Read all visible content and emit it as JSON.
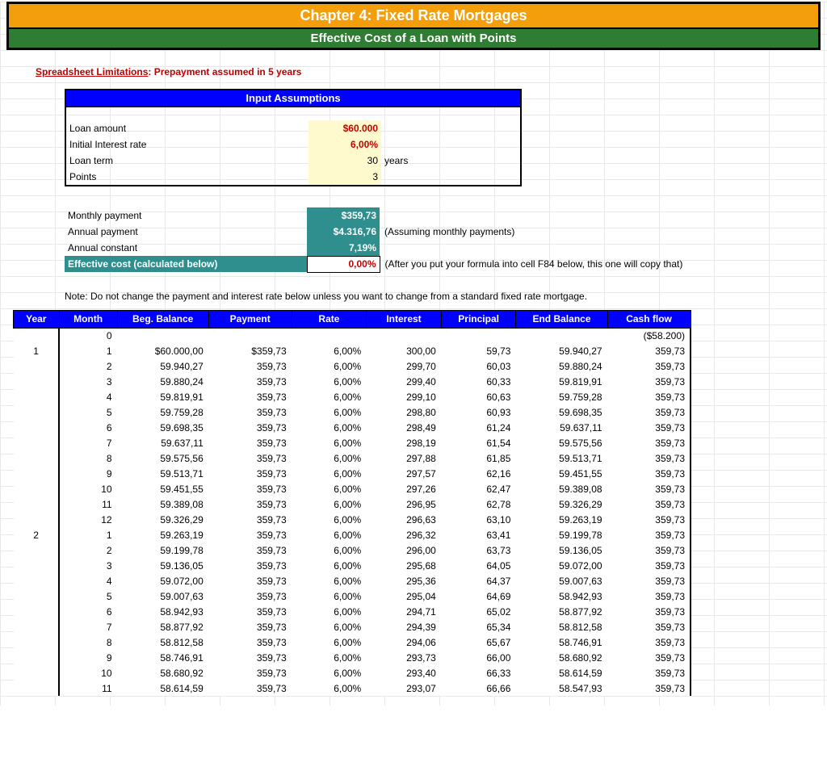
{
  "header": {
    "title": "Chapter 4:  Fixed Rate Mortgages",
    "subtitle": "Effective Cost of a Loan with Points"
  },
  "warning": {
    "label": "Spreadsheet Limitations",
    "text": ": Prepayment assumed in 5 years"
  },
  "assumptions": {
    "header": "Input Assumptions",
    "rows": {
      "loan_amount_l": "Loan amount",
      "loan_amount_v": "$60.000",
      "rate_l": "Initial Interest rate",
      "rate_v": "6,00%",
      "term_l": "Loan term",
      "term_v": "30",
      "term_unit": "years",
      "points_l": "Points",
      "points_v": "3"
    }
  },
  "calc": {
    "mp_l": "Monthly payment",
    "mp_v": "$359,73",
    "ap_l": "Annual payment",
    "ap_v": "$4.316,76",
    "ap_note": "(Assuming monthly payments)",
    "ac_l": "Annual constant",
    "ac_v": "7,19%",
    "ec_l": "Effective cost (calculated below)",
    "ec_v": "0,00%",
    "ec_note": "(After you put your formula into cell F84 below, this one will copy that)"
  },
  "note": "Note: Do not change the payment and interest rate below unless you want to change from a standard fixed rate mortgage.",
  "amort": {
    "headers": [
      "Year",
      "Month",
      "Beg. Balance",
      "Payment",
      "Rate",
      "Interest",
      "Principal",
      "End Balance",
      "Cash flow"
    ],
    "row0": {
      "year": "",
      "month": "0",
      "bb": "",
      "pmt": "",
      "rate": "",
      "int": "",
      "prin": "",
      "eb": "",
      "cf": "($58.200)"
    },
    "rows": [
      {
        "year": "1",
        "month": "1",
        "bb": "$60.000,00",
        "pmt": "$359,73",
        "rate": "6,00%",
        "int": "300,00",
        "prin": "59,73",
        "eb": "59.940,27",
        "cf": "359,73"
      },
      {
        "year": "",
        "month": "2",
        "bb": "59.940,27",
        "pmt": "359,73",
        "rate": "6,00%",
        "int": "299,70",
        "prin": "60,03",
        "eb": "59.880,24",
        "cf": "359,73"
      },
      {
        "year": "",
        "month": "3",
        "bb": "59.880,24",
        "pmt": "359,73",
        "rate": "6,00%",
        "int": "299,40",
        "prin": "60,33",
        "eb": "59.819,91",
        "cf": "359,73"
      },
      {
        "year": "",
        "month": "4",
        "bb": "59.819,91",
        "pmt": "359,73",
        "rate": "6,00%",
        "int": "299,10",
        "prin": "60,63",
        "eb": "59.759,28",
        "cf": "359,73"
      },
      {
        "year": "",
        "month": "5",
        "bb": "59.759,28",
        "pmt": "359,73",
        "rate": "6,00%",
        "int": "298,80",
        "prin": "60,93",
        "eb": "59.698,35",
        "cf": "359,73"
      },
      {
        "year": "",
        "month": "6",
        "bb": "59.698,35",
        "pmt": "359,73",
        "rate": "6,00%",
        "int": "298,49",
        "prin": "61,24",
        "eb": "59.637,11",
        "cf": "359,73"
      },
      {
        "year": "",
        "month": "7",
        "bb": "59.637,11",
        "pmt": "359,73",
        "rate": "6,00%",
        "int": "298,19",
        "prin": "61,54",
        "eb": "59.575,56",
        "cf": "359,73"
      },
      {
        "year": "",
        "month": "8",
        "bb": "59.575,56",
        "pmt": "359,73",
        "rate": "6,00%",
        "int": "297,88",
        "prin": "61,85",
        "eb": "59.513,71",
        "cf": "359,73"
      },
      {
        "year": "",
        "month": "9",
        "bb": "59.513,71",
        "pmt": "359,73",
        "rate": "6,00%",
        "int": "297,57",
        "prin": "62,16",
        "eb": "59.451,55",
        "cf": "359,73"
      },
      {
        "year": "",
        "month": "10",
        "bb": "59.451,55",
        "pmt": "359,73",
        "rate": "6,00%",
        "int": "297,26",
        "prin": "62,47",
        "eb": "59.389,08",
        "cf": "359,73"
      },
      {
        "year": "",
        "month": "11",
        "bb": "59.389,08",
        "pmt": "359,73",
        "rate": "6,00%",
        "int": "296,95",
        "prin": "62,78",
        "eb": "59.326,29",
        "cf": "359,73"
      },
      {
        "year": "",
        "month": "12",
        "bb": "59.326,29",
        "pmt": "359,73",
        "rate": "6,00%",
        "int": "296,63",
        "prin": "63,10",
        "eb": "59.263,19",
        "cf": "359,73"
      },
      {
        "year": "2",
        "month": "1",
        "bb": "59.263,19",
        "pmt": "359,73",
        "rate": "6,00%",
        "int": "296,32",
        "prin": "63,41",
        "eb": "59.199,78",
        "cf": "359,73"
      },
      {
        "year": "",
        "month": "2",
        "bb": "59.199,78",
        "pmt": "359,73",
        "rate": "6,00%",
        "int": "296,00",
        "prin": "63,73",
        "eb": "59.136,05",
        "cf": "359,73"
      },
      {
        "year": "",
        "month": "3",
        "bb": "59.136,05",
        "pmt": "359,73",
        "rate": "6,00%",
        "int": "295,68",
        "prin": "64,05",
        "eb": "59.072,00",
        "cf": "359,73"
      },
      {
        "year": "",
        "month": "4",
        "bb": "59.072,00",
        "pmt": "359,73",
        "rate": "6,00%",
        "int": "295,36",
        "prin": "64,37",
        "eb": "59.007,63",
        "cf": "359,73"
      },
      {
        "year": "",
        "month": "5",
        "bb": "59.007,63",
        "pmt": "359,73",
        "rate": "6,00%",
        "int": "295,04",
        "prin": "64,69",
        "eb": "58.942,93",
        "cf": "359,73"
      },
      {
        "year": "",
        "month": "6",
        "bb": "58.942,93",
        "pmt": "359,73",
        "rate": "6,00%",
        "int": "294,71",
        "prin": "65,02",
        "eb": "58.877,92",
        "cf": "359,73"
      },
      {
        "year": "",
        "month": "7",
        "bb": "58.877,92",
        "pmt": "359,73",
        "rate": "6,00%",
        "int": "294,39",
        "prin": "65,34",
        "eb": "58.812,58",
        "cf": "359,73"
      },
      {
        "year": "",
        "month": "8",
        "bb": "58.812,58",
        "pmt": "359,73",
        "rate": "6,00%",
        "int": "294,06",
        "prin": "65,67",
        "eb": "58.746,91",
        "cf": "359,73"
      },
      {
        "year": "",
        "month": "9",
        "bb": "58.746,91",
        "pmt": "359,73",
        "rate": "6,00%",
        "int": "293,73",
        "prin": "66,00",
        "eb": "58.680,92",
        "cf": "359,73"
      },
      {
        "year": "",
        "month": "10",
        "bb": "58.680,92",
        "pmt": "359,73",
        "rate": "6,00%",
        "int": "293,40",
        "prin": "66,33",
        "eb": "58.614,59",
        "cf": "359,73"
      },
      {
        "year": "",
        "month": "11",
        "bb": "58.614,59",
        "pmt": "359,73",
        "rate": "6,00%",
        "int": "293,07",
        "prin": "66,66",
        "eb": "58.547,93",
        "cf": "359,73"
      }
    ]
  },
  "colors": {
    "header_orange": "#f59e0b",
    "header_green": "#2e7d32",
    "blue": "#0000ff",
    "yellow": "#fffacd",
    "teal": "#2f8e8e",
    "red": "#c00000"
  }
}
